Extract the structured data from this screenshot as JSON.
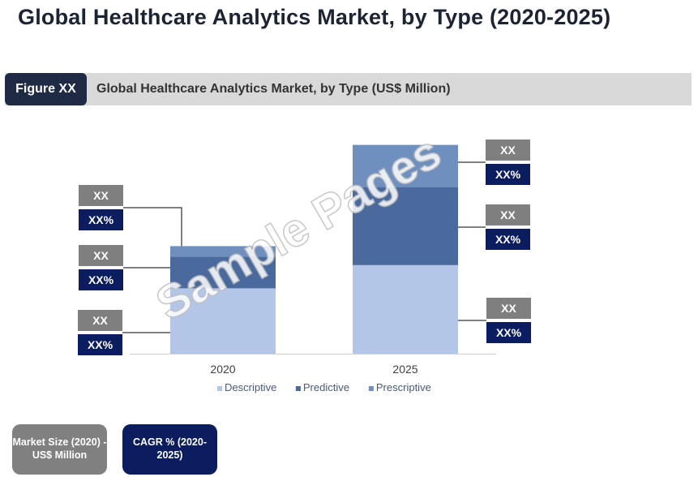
{
  "page": {
    "title": "Global Healthcare Analytics Market, by Type (2020-2025)",
    "figure_tag": "Figure XX",
    "figure_caption": "Global Healthcare Analytics Market, by Type (US$ Million)",
    "watermark": "Sample Pages"
  },
  "buttons": {
    "market_size": "Market Size (2020) - US$ Million",
    "cagr": "CAGR % (2020-2025)"
  },
  "colors": {
    "descriptive": "#b4c6e7",
    "predictive": "#4a6a9e",
    "prescriptive": "#6f8fbf",
    "callout_value": "#7f7f7f",
    "callout_pct": "#0b1d5e"
  },
  "chart_data": {
    "type": "bar",
    "stacked": true,
    "categories": [
      "2020",
      "2025"
    ],
    "series": [
      {
        "name": "Descriptive",
        "values": [
          31,
          42
        ]
      },
      {
        "name": "Predictive",
        "values": [
          15,
          37
        ]
      },
      {
        "name": "Prescriptive",
        "values": [
          5,
          20
        ]
      }
    ],
    "callouts": {
      "2020": [
        {
          "value": "XX",
          "pct": "XX%"
        },
        {
          "value": "XX",
          "pct": "XX%"
        },
        {
          "value": "XX",
          "pct": "XX%"
        }
      ],
      "2025": [
        {
          "value": "XX",
          "pct": "XX%"
        },
        {
          "value": "XX",
          "pct": "XX%"
        },
        {
          "value": "XX",
          "pct": "XX%"
        }
      ]
    },
    "legend_position": "bottom",
    "grid": false
  }
}
